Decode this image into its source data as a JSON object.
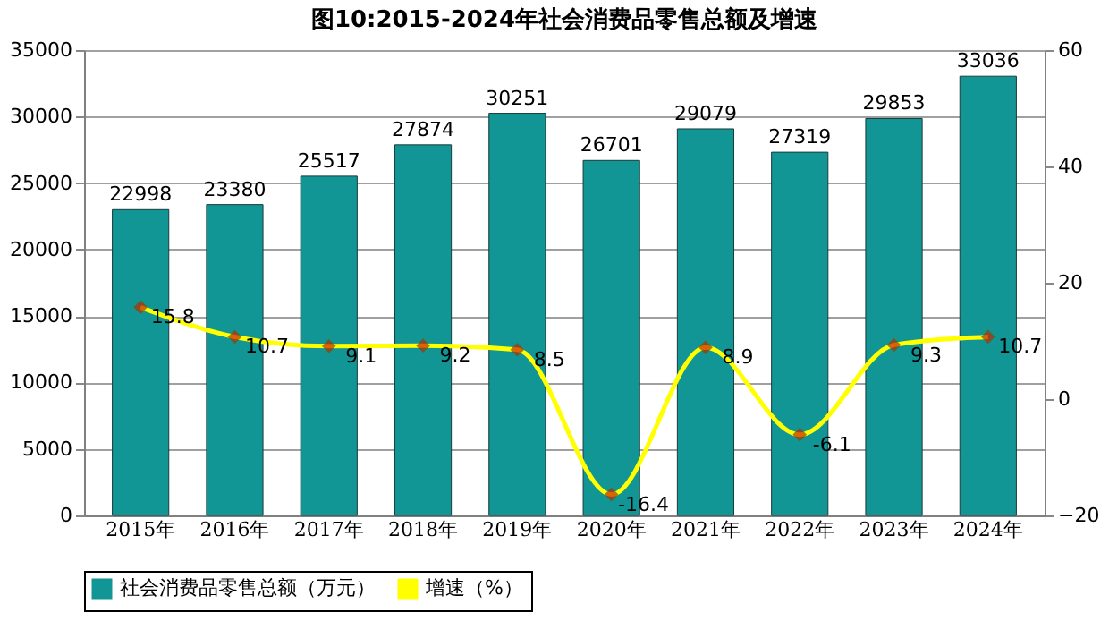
{
  "chart_data": {
    "type": "bar",
    "title": "图10:2015-2024年社会消费品零售总额及增速",
    "categories": [
      "2015年",
      "2016年",
      "2017年",
      "2018年",
      "2019年",
      "2020年",
      "2021年",
      "2022年",
      "2023年",
      "2024年"
    ],
    "series": [
      {
        "name": "社会消费品零售总额（万元）",
        "type": "bar",
        "color": "#129595",
        "values": [
          22998,
          23380,
          25517,
          27874,
          30251,
          26701,
          29079,
          27319,
          29853,
          33036
        ]
      },
      {
        "name": "增速（%）",
        "type": "line",
        "axis": "y2",
        "color": "#ffff00",
        "marker": "diamond",
        "values": [
          15.8,
          10.7,
          9.1,
          9.2,
          8.5,
          -16.4,
          8.9,
          -6.1,
          9.3,
          10.7
        ]
      }
    ],
    "ylim": [
      0,
      35000
    ],
    "yticks": [
      0,
      5000,
      10000,
      15000,
      20000,
      25000,
      30000,
      35000
    ],
    "y2lim": [
      -20,
      60
    ],
    "y2ticks": [
      -20,
      0,
      20,
      40,
      60
    ],
    "data_labels": true,
    "grid": "y",
    "legend": "bottom"
  }
}
